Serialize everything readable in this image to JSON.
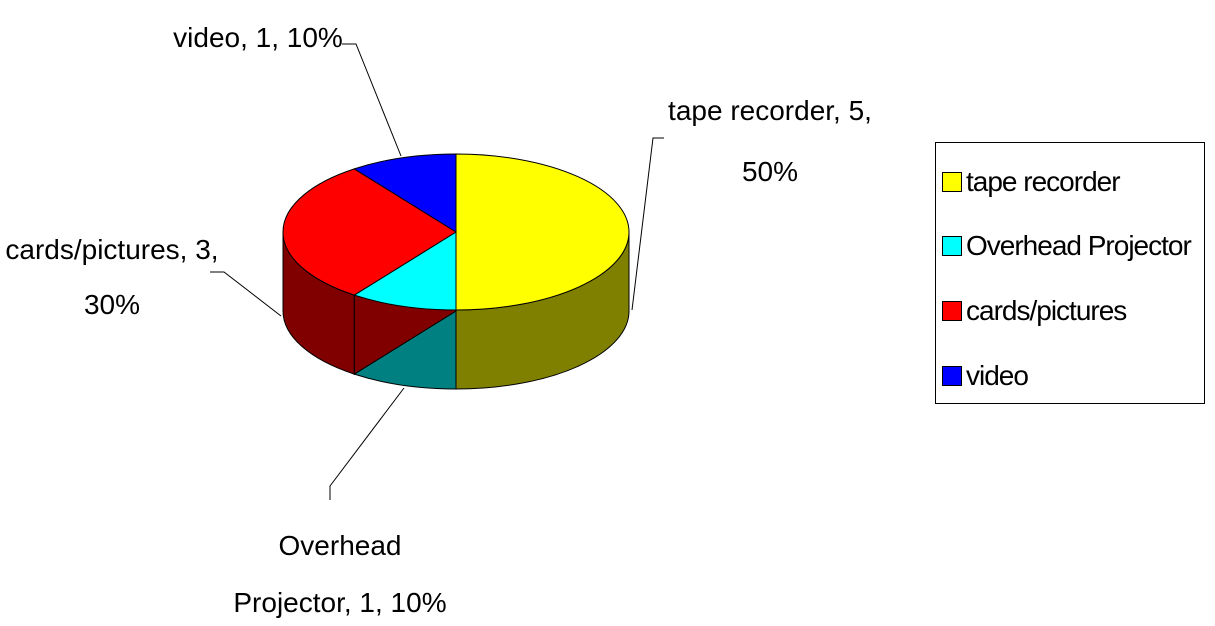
{
  "chart_data": {
    "type": "pie",
    "style": "3d",
    "slices": [
      {
        "name": "tape recorder",
        "value": 5,
        "percent": 50,
        "color": "#ffff00",
        "side_color": "#808000",
        "label_lines": [
          "tape recorder, 5,",
          "50%"
        ]
      },
      {
        "name": "Overhead Projector",
        "value": 1,
        "percent": 10,
        "color": "#00ffff",
        "side_color": "#008080",
        "label_lines": [
          "Overhead",
          "Projector, 1, 10%"
        ]
      },
      {
        "name": "cards/pictures",
        "value": 3,
        "percent": 30,
        "color": "#ff0000",
        "side_color": "#800000",
        "label_lines": [
          "cards/pictures, 3,",
          "30%"
        ]
      },
      {
        "name": "video",
        "value": 1,
        "percent": 10,
        "color": "#0000ff",
        "side_color": "#000080",
        "label_lines": [
          "video, 1, 10%"
        ]
      }
    ],
    "legend_position": "right"
  },
  "legend": {
    "items": [
      "tape recorder",
      "Overhead Projector",
      "cards/pictures",
      "video"
    ]
  }
}
